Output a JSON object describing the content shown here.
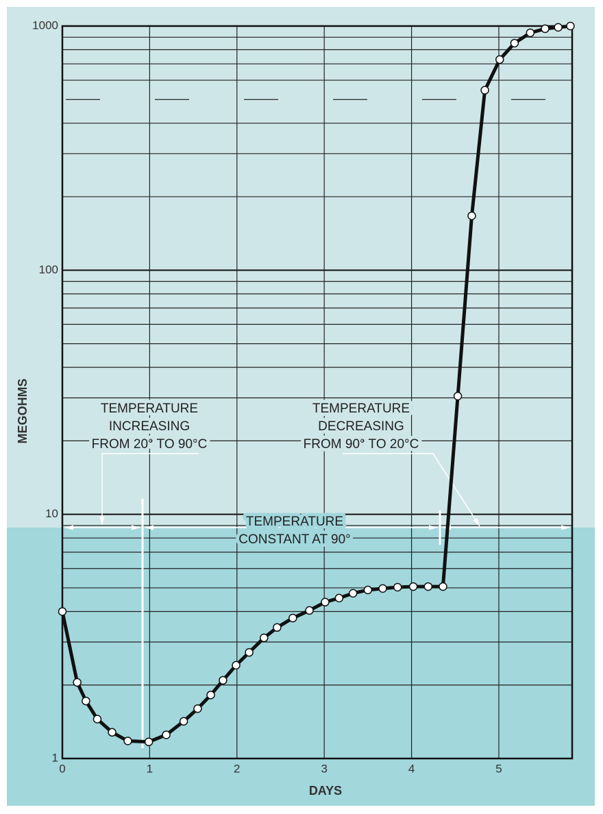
{
  "chart_data": {
    "type": "line",
    "y_label": "MEGOHMS",
    "x_label": "DAYS",
    "x": [
      0,
      0.17,
      0.27,
      0.4,
      0.57,
      0.75,
      0.99,
      1.19,
      1.39,
      1.55,
      1.7,
      1.84,
      1.99,
      2.14,
      2.31,
      2.46,
      2.64,
      2.83,
      3.01,
      3.17,
      3.33,
      3.5,
      3.67,
      3.84,
      4.02,
      4.19,
      4.36,
      4.53,
      4.69,
      4.84,
      5.01,
      5.18,
      5.36,
      5.53,
      5.68,
      5.82
    ],
    "series": [
      {
        "color": "#111111",
        "values": [
          4.0,
          2.05,
          1.72,
          1.45,
          1.28,
          1.18,
          1.17,
          1.25,
          1.42,
          1.6,
          1.82,
          2.09,
          2.41,
          2.72,
          3.12,
          3.44,
          3.76,
          4.04,
          4.37,
          4.54,
          4.75,
          4.9,
          4.97,
          5.03,
          5.06,
          5.06,
          5.06,
          30.5,
          167,
          546,
          729,
          851,
          938,
          975,
          988,
          1000
        ]
      }
    ],
    "xlim": [
      0,
      5.84
    ],
    "xticks": [
      0,
      1,
      2,
      3,
      4,
      5
    ],
    "ylim": [
      1,
      1000
    ],
    "yticks": [
      1,
      10,
      100,
      1000
    ],
    "log_y": true,
    "grid": true,
    "yticks_minor": [
      2,
      3,
      4,
      5,
      6,
      7,
      8,
      9,
      20,
      30,
      40,
      50,
      60,
      70,
      80,
      90,
      200,
      300,
      400,
      600,
      700,
      800,
      900
    ],
    "y_dashed": [
      500
    ],
    "annotations": [
      {
        "lines": [
          "TEMPERATURE",
          "INCREASING",
          "FROM 20° TO 90°C"
        ]
      },
      {
        "lines": [
          "TEMPERATURE",
          "DECREASING",
          "FROM 90° TO 20°C"
        ]
      },
      {
        "lines": [
          "TEMPERATURE",
          "CONSTANT AT 90°"
        ]
      }
    ]
  }
}
